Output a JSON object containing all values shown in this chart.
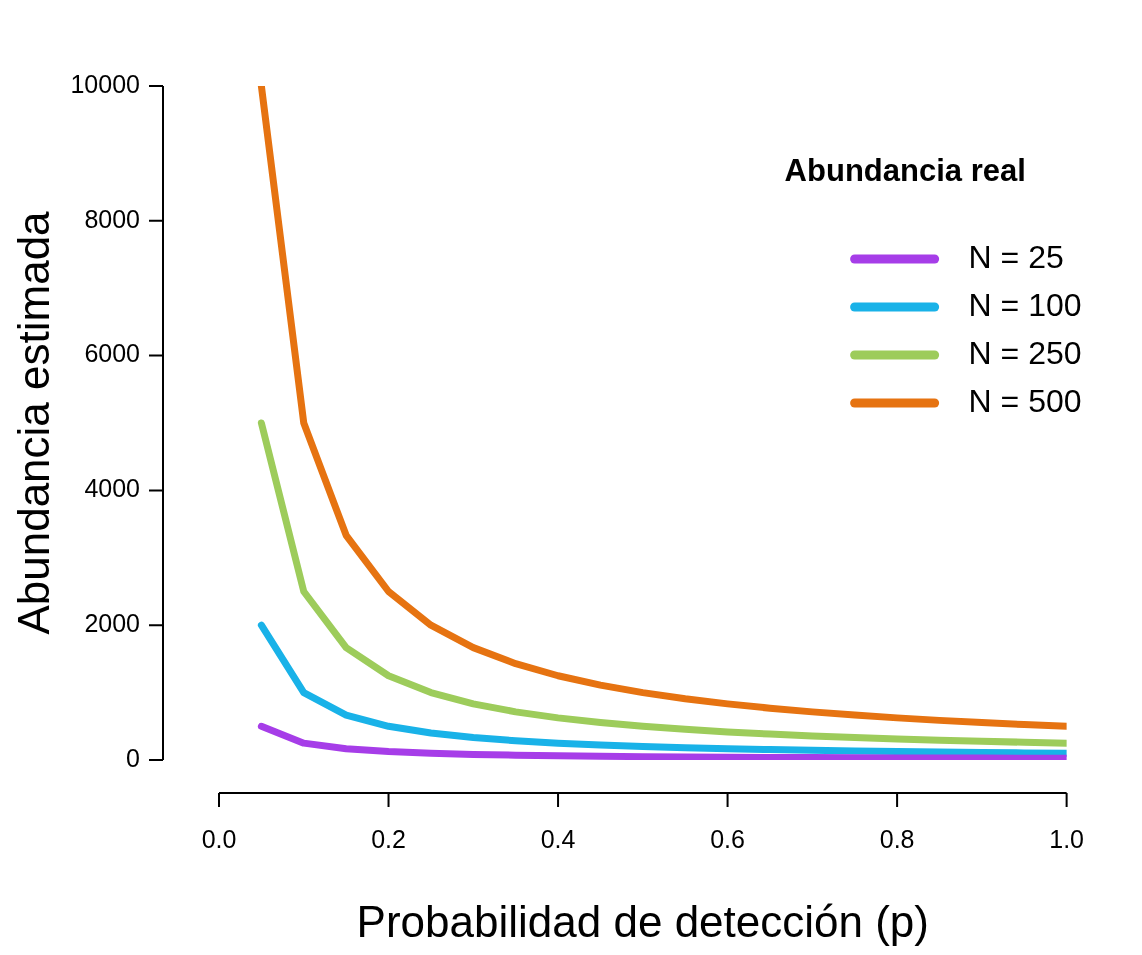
{
  "chart_data": {
    "type": "line",
    "xlabel": "Probabilidad de detección (p)",
    "ylabel": "Abundancia estimada",
    "legend_title": "Abundancia real",
    "legend": "top right",
    "x": [
      0.05,
      0.1,
      0.15,
      0.2,
      0.25,
      0.3,
      0.35,
      0.4,
      0.45,
      0.5,
      0.55,
      0.6,
      0.65,
      0.7,
      0.75,
      0.8,
      0.85,
      0.9,
      0.95,
      1.0
    ],
    "series": [
      {
        "name": "N = 25",
        "color": "#a63de8",
        "values": [
          500,
          250,
          167,
          125,
          100,
          83,
          71,
          63,
          56,
          50,
          45,
          42,
          38,
          36,
          33,
          31,
          29,
          28,
          26,
          25
        ]
      },
      {
        "name": "N = 100",
        "color": "#19b2e8",
        "values": [
          2000,
          1000,
          667,
          500,
          400,
          333,
          286,
          250,
          222,
          200,
          182,
          167,
          154,
          143,
          133,
          125,
          118,
          111,
          105,
          100
        ]
      },
      {
        "name": "N = 250",
        "color": "#9dcc5b",
        "values": [
          5000,
          2500,
          1667,
          1250,
          1000,
          833,
          714,
          625,
          556,
          500,
          455,
          417,
          385,
          357,
          333,
          313,
          294,
          278,
          263,
          250
        ]
      },
      {
        "name": "N = 500",
        "color": "#e67311",
        "values": [
          10000,
          5000,
          3333,
          2500,
          2000,
          1667,
          1429,
          1250,
          1111,
          1000,
          909,
          833,
          769,
          714,
          667,
          625,
          588,
          556,
          526,
          500
        ]
      }
    ],
    "xlim": [
      0,
      1
    ],
    "ylim": [
      0,
      10000
    ],
    "xticks": [
      {
        "value": 0,
        "label": "0.0"
      },
      {
        "value": 0.2,
        "label": "0.2"
      },
      {
        "value": 0.4,
        "label": "0.4"
      },
      {
        "value": 0.6,
        "label": "0.6"
      },
      {
        "value": 0.8,
        "label": "0.8"
      },
      {
        "value": 1,
        "label": "1.0"
      }
    ],
    "yticks": [
      0,
      2000,
      4000,
      6000,
      8000,
      10000
    ]
  }
}
